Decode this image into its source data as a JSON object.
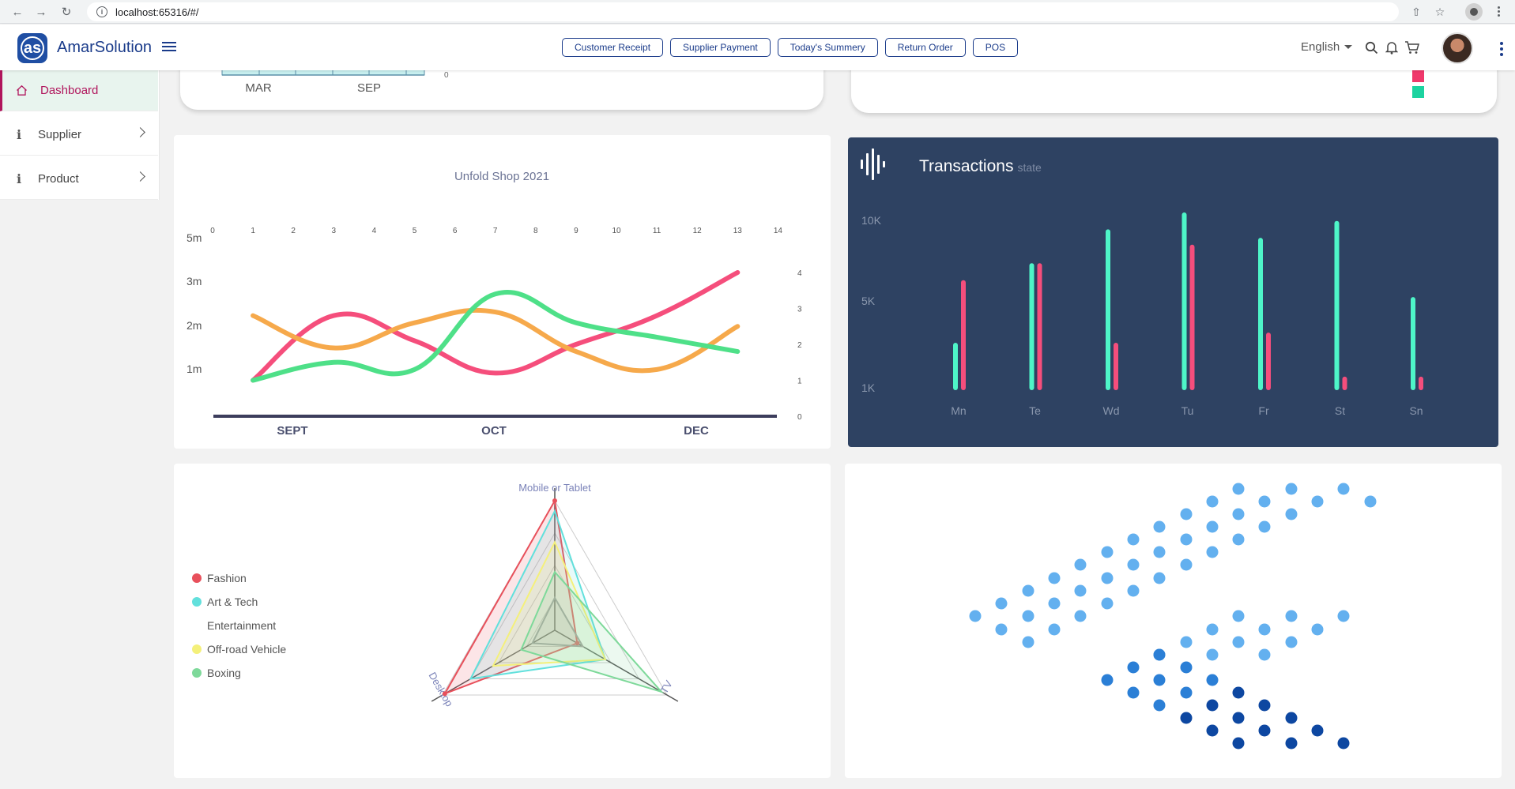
{
  "browser": {
    "url": "localhost:65316/#/"
  },
  "header": {
    "app_name": "AmarSolution",
    "logo_text": "as",
    "quick_actions": [
      "Customer Receipt",
      "Supplier Payment",
      "Today's Summery",
      "Return Order",
      "POS"
    ],
    "language": "English"
  },
  "sidebar": {
    "items": [
      {
        "label": "Dashboard",
        "icon": "home-icon",
        "active": true
      },
      {
        "label": "Supplier",
        "icon": "info-icon",
        "active": false
      },
      {
        "label": "Product",
        "icon": "info-icon",
        "active": false
      }
    ]
  },
  "top_left_card": {
    "x_labels": [
      "MAR",
      "SEP"
    ],
    "axis_label": "0"
  },
  "top_right_card": {
    "legend_colors": [
      "#f0386b",
      "#1dd3a0"
    ]
  },
  "colors": {
    "pink": "#f54e7c",
    "orange": "#f6a94b",
    "green": "#4ee088",
    "teal": "#4ef5c8",
    "navy": "#2e4262",
    "accent": "#b0155c",
    "brand": "#1a3b8a"
  },
  "chart_data": [
    {
      "type": "line",
      "title": "Unfold Shop 2021",
      "x_top_ticks": [
        "0",
        "1",
        "2",
        "3",
        "4",
        "5",
        "6",
        "7",
        "8",
        "9",
        "10",
        "11",
        "12",
        "13",
        "14"
      ],
      "y_left_ticks": [
        "5m",
        "3m",
        "2m",
        "1m"
      ],
      "y_right_ticks": [
        "4",
        "3",
        "2",
        "1",
        "0"
      ],
      "x_bottom_labels": [
        "SEPT",
        "OCT",
        "DEC"
      ],
      "x": [
        1,
        3,
        5,
        7,
        9,
        11,
        13
      ],
      "series": [
        {
          "color": "#f54e7c",
          "values": [
            1.0,
            2.8,
            2.1,
            1.2,
            2.0,
            2.8,
            4.0
          ]
        },
        {
          "color": "#f6a94b",
          "values": [
            2.8,
            1.9,
            2.6,
            2.9,
            1.8,
            1.3,
            2.5
          ]
        },
        {
          "color": "#4ee088",
          "values": [
            1.0,
            1.5,
            1.3,
            3.4,
            2.6,
            2.2,
            1.8
          ]
        }
      ]
    },
    {
      "type": "bar",
      "title": "Transactions",
      "subtitle": "state",
      "categories": [
        "Mn",
        "Te",
        "Wd",
        "Tu",
        "Fr",
        "St",
        "Sn"
      ],
      "y_ticks": [
        "10K",
        "5K",
        "1K"
      ],
      "series": [
        {
          "color": "#4ef5c8",
          "values": [
            2800,
            7500,
            9500,
            10500,
            9000,
            10000,
            5500
          ]
        },
        {
          "color": "#f54e7c",
          "values": [
            6500,
            7500,
            2800,
            8600,
            3400,
            800,
            800
          ]
        }
      ]
    },
    {
      "type": "radar",
      "axes": [
        "Mobile or Tablet",
        "Desktop",
        "TV"
      ],
      "legend": [
        {
          "name": "Fashion",
          "color": "#e8505b"
        },
        {
          "name": "Art & Tech",
          "color": "#62e0dc"
        },
        {
          "name": "Entertainment",
          "color": ""
        },
        {
          "name": "Off-road Vehicle",
          "color": "#f4f07a"
        },
        {
          "name": "Boxing",
          "color": "#7ed99a"
        }
      ],
      "series": [
        {
          "name": "Fashion",
          "color": "#e8505b",
          "values": [
            1.0,
            0.98,
            0.2
          ]
        },
        {
          "name": "Art & Tech",
          "color": "#62e0dc",
          "values": [
            0.92,
            0.75,
            0.45
          ]
        },
        {
          "name": "Entertainment",
          "color": "#9aa0a6",
          "values": [
            0.25,
            0.2,
            0.25
          ]
        },
        {
          "name": "Off-road Vehicle",
          "color": "#f4f07a",
          "values": [
            0.68,
            0.55,
            0.45
          ]
        },
        {
          "name": "Boxing",
          "color": "#7ed99a",
          "values": [
            0.45,
            0.3,
            0.95
          ]
        }
      ]
    }
  ]
}
